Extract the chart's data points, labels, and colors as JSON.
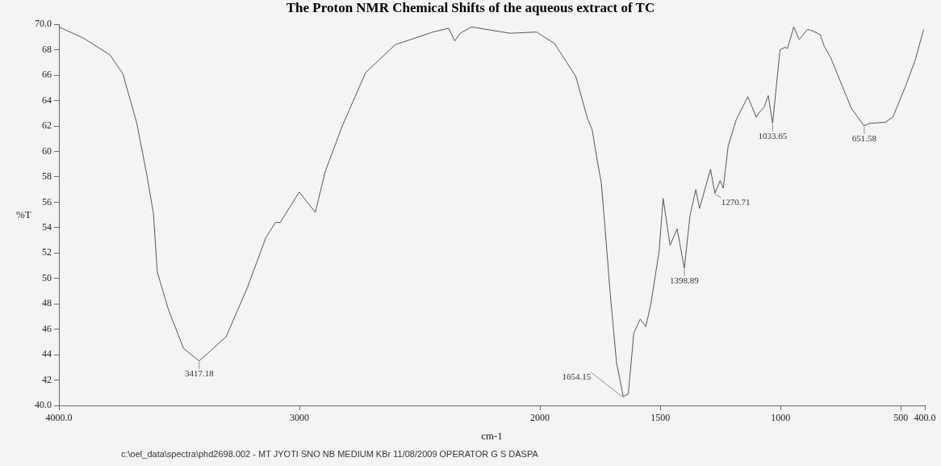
{
  "chart_data": {
    "type": "line",
    "title": "The Proton NMR Chemical Shifts of the aqueous extract of TC",
    "xlabel": "cm-1",
    "ylabel": "%T",
    "color": "#555555",
    "marker": "none",
    "grid": false,
    "legend": false,
    "xlim": [
      4000,
      400
    ],
    "ylim": [
      40,
      70
    ],
    "xticks": [
      {
        "value": 4000,
        "label": "4000.0"
      },
      3000,
      2000,
      1500,
      1000,
      500,
      {
        "value": 400,
        "label": "400.0"
      }
    ],
    "yticks": [
      {
        "value": 40,
        "label": "40.0"
      },
      42,
      44,
      46,
      48,
      50,
      52,
      54,
      56,
      58,
      60,
      62,
      64,
      66,
      68,
      {
        "value": 70,
        "label": "70.0"
      }
    ],
    "x": [
      4000,
      3896,
      3788,
      3734,
      3676,
      3634,
      3607,
      3591,
      3544,
      3482,
      3417,
      3305,
      3216,
      3140,
      3100,
      3080,
      3001,
      2934,
      2893,
      2822,
      2725,
      2602,
      2445,
      2380,
      2354,
      2332,
      2285,
      2124,
      2015,
      1940,
      1851,
      1803,
      1783,
      1763,
      1745,
      1728,
      1708,
      1682,
      1654,
      1633,
      1610,
      1583,
      1560,
      1539,
      1505,
      1488,
      1459,
      1430,
      1400,
      1376,
      1352,
      1337,
      1291,
      1273,
      1251,
      1238,
      1218,
      1184,
      1136,
      1101,
      1091,
      1068,
      1051,
      1033,
      1002,
      981,
      971,
      945,
      922,
      888,
      869,
      835,
      819,
      792,
      751,
      706,
      652,
      631,
      564,
      533,
      481,
      440,
      405
    ],
    "values": [
      69.8,
      68.9,
      67.6,
      66.1,
      62.2,
      58.1,
      55.1,
      50.5,
      47.5,
      44.5,
      43.5,
      45.4,
      49.3,
      53.2,
      54.4,
      54.4,
      56.8,
      55.2,
      58.4,
      62.0,
      66.2,
      68.4,
      69.4,
      69.7,
      68.7,
      69.3,
      69.8,
      69.3,
      69.4,
      68.5,
      65.9,
      62.6,
      61.7,
      59.4,
      57.5,
      53.6,
      48.8,
      43.4,
      40.7,
      40.9,
      45.7,
      46.8,
      46.2,
      48.0,
      52.1,
      56.3,
      52.6,
      53.9,
      50.8,
      55.0,
      57.0,
      55.5,
      58.6,
      56.7,
      57.7,
      57.1,
      60.4,
      62.5,
      64.3,
      62.7,
      63.0,
      63.5,
      64.4,
      62.2,
      68.0,
      68.2,
      68.1,
      69.8,
      68.8,
      69.6,
      69.5,
      69.2,
      68.3,
      67.4,
      65.5,
      63.4,
      62.0,
      62.2,
      62.3,
      62.7,
      65.1,
      67.2,
      69.6
    ],
    "annotations": [
      {
        "text": "3417.18",
        "x": 3417,
        "y": 43.5
      },
      {
        "text": "1654.15",
        "x": 1654,
        "y": 40.7
      },
      {
        "text": "1398.89",
        "x": 1400,
        "y": 50.8
      },
      {
        "text": "1270.71",
        "x": 1273,
        "y": 56.7
      },
      {
        "text": "1033.65",
        "x": 1033,
        "y": 62.2
      },
      {
        "text": "651.58",
        "x": 652,
        "y": 62.0
      },
      "c:\\oel_data\\spectra\\phd2698.002 - MT JYOTI SNO NB MEDIUM KBr 11/08/2009 OPERATOR G S DASPA"
    ]
  }
}
